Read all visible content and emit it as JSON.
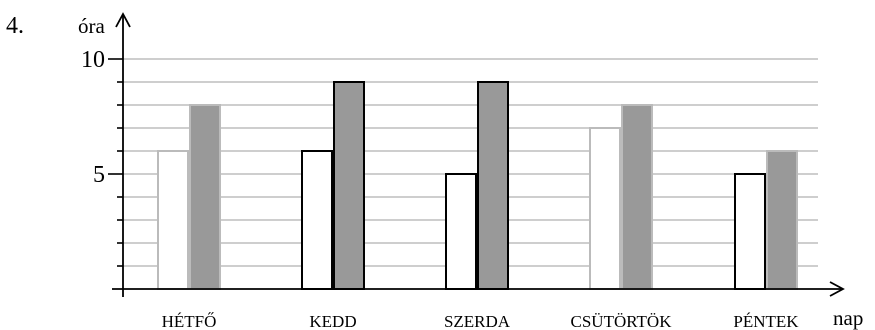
{
  "problem_number": "4.",
  "chart_data": {
    "type": "bar",
    "ylabel": "óra",
    "xlabel": "nap",
    "categories": [
      "HÉTFŐ",
      "KEDD",
      "SZERDA",
      "CSÜTÖRTÖK",
      "PÉNTEK"
    ],
    "yticklabels": [
      "5",
      "10"
    ],
    "ylim": [
      0,
      10
    ],
    "minor_step": 1,
    "grid": "horizontal",
    "series": [
      {
        "values": [
          6,
          6,
          5,
          7,
          5
        ],
        "fill": "#ffffff",
        "stroke": [
          "#bbbbbb",
          "#000000",
          "#000000",
          "#bbbbbb",
          "#000000"
        ]
      },
      {
        "values": [
          8,
          9,
          9,
          8,
          6
        ],
        "fill": "#999999",
        "stroke": [
          "#bbbbbb",
          "#000000",
          "#000000",
          "#bbbbbb",
          "#bbbbbb"
        ]
      }
    ]
  }
}
